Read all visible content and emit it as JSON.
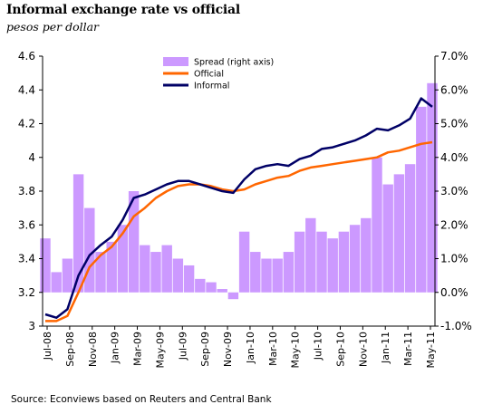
{
  "title": "Informal exchange rate vs official",
  "subtitle": "pesos per dollar",
  "source": "Source: Econviews based on Reuters and Central Bank",
  "colors": {
    "spread": "#cc99ff",
    "official": "#ff6600",
    "informal": "#000066"
  },
  "chart_data": {
    "type": "line",
    "x_ticks": [
      "Jul-08",
      "Sep-08",
      "Nov-08",
      "Jan-09",
      "Mar-09",
      "May-09",
      "Jul-09",
      "Sep-09",
      "Nov-09",
      "Jan-10",
      "Mar-10",
      "May-10",
      "Jul-10",
      "Sep-10",
      "Nov-10",
      "Jan-11",
      "Mar-11",
      "May-11"
    ],
    "x": [
      "Jul-08",
      "Aug-08",
      "Sep-08",
      "Oct-08",
      "Nov-08",
      "Dec-08",
      "Jan-09",
      "Feb-09",
      "Mar-09",
      "Apr-09",
      "May-09",
      "Jun-09",
      "Jul-09",
      "Aug-09",
      "Sep-09",
      "Oct-09",
      "Nov-09",
      "Dec-09",
      "Jan-10",
      "Feb-10",
      "Mar-10",
      "Apr-10",
      "May-10",
      "Jun-10",
      "Jul-10",
      "Aug-10",
      "Sep-10",
      "Oct-10",
      "Nov-10",
      "Dec-10",
      "Jan-11",
      "Feb-11",
      "Mar-11",
      "Apr-11",
      "May-11",
      "Jun-11"
    ],
    "y_left": {
      "ylim": [
        3.0,
        4.6
      ],
      "ticks": [
        "3",
        "3.2",
        "3.4",
        "3.6",
        "3.8",
        "4",
        "4.2",
        "4.4",
        "4.6"
      ]
    },
    "y_right": {
      "ylim": [
        -1.0,
        7.0
      ],
      "ticks": [
        "-1.0%",
        "0.0%",
        "1.0%",
        "2.0%",
        "3.0%",
        "4.0%",
        "5.0%",
        "6.0%",
        "7.0%"
      ]
    },
    "legend_position": "top-center",
    "series": [
      {
        "name": "Spread (right axis)",
        "type": "bar",
        "axis": "right",
        "values": [
          1.6,
          0.6,
          1.0,
          3.5,
          2.5,
          1.2,
          1.5,
          2.0,
          3.0,
          1.4,
          1.2,
          1.4,
          1.0,
          0.8,
          0.4,
          0.3,
          0.1,
          -0.2,
          1.8,
          1.2,
          1.0,
          1.0,
          1.2,
          1.8,
          2.2,
          1.8,
          1.6,
          1.8,
          2.0,
          2.2,
          4.0,
          3.2,
          3.5,
          3.8,
          5.5,
          6.2
        ]
      },
      {
        "name": "Official",
        "type": "line",
        "axis": "left",
        "values": [
          3.03,
          3.03,
          3.06,
          3.2,
          3.35,
          3.42,
          3.47,
          3.55,
          3.65,
          3.7,
          3.76,
          3.8,
          3.83,
          3.84,
          3.84,
          3.83,
          3.81,
          3.8,
          3.81,
          3.84,
          3.86,
          3.88,
          3.89,
          3.92,
          3.94,
          3.95,
          3.96,
          3.97,
          3.98,
          3.99,
          4.0,
          4.03,
          4.04,
          4.06,
          4.08,
          4.09
        ]
      },
      {
        "name": "Informal",
        "type": "line",
        "axis": "left",
        "values": [
          3.07,
          3.05,
          3.1,
          3.3,
          3.42,
          3.48,
          3.53,
          3.63,
          3.76,
          3.78,
          3.81,
          3.84,
          3.86,
          3.86,
          3.84,
          3.82,
          3.8,
          3.79,
          3.87,
          3.93,
          3.95,
          3.96,
          3.95,
          3.99,
          4.01,
          4.05,
          4.06,
          4.08,
          4.1,
          4.13,
          4.17,
          4.16,
          4.19,
          4.23,
          4.35,
          4.3
        ]
      }
    ]
  }
}
